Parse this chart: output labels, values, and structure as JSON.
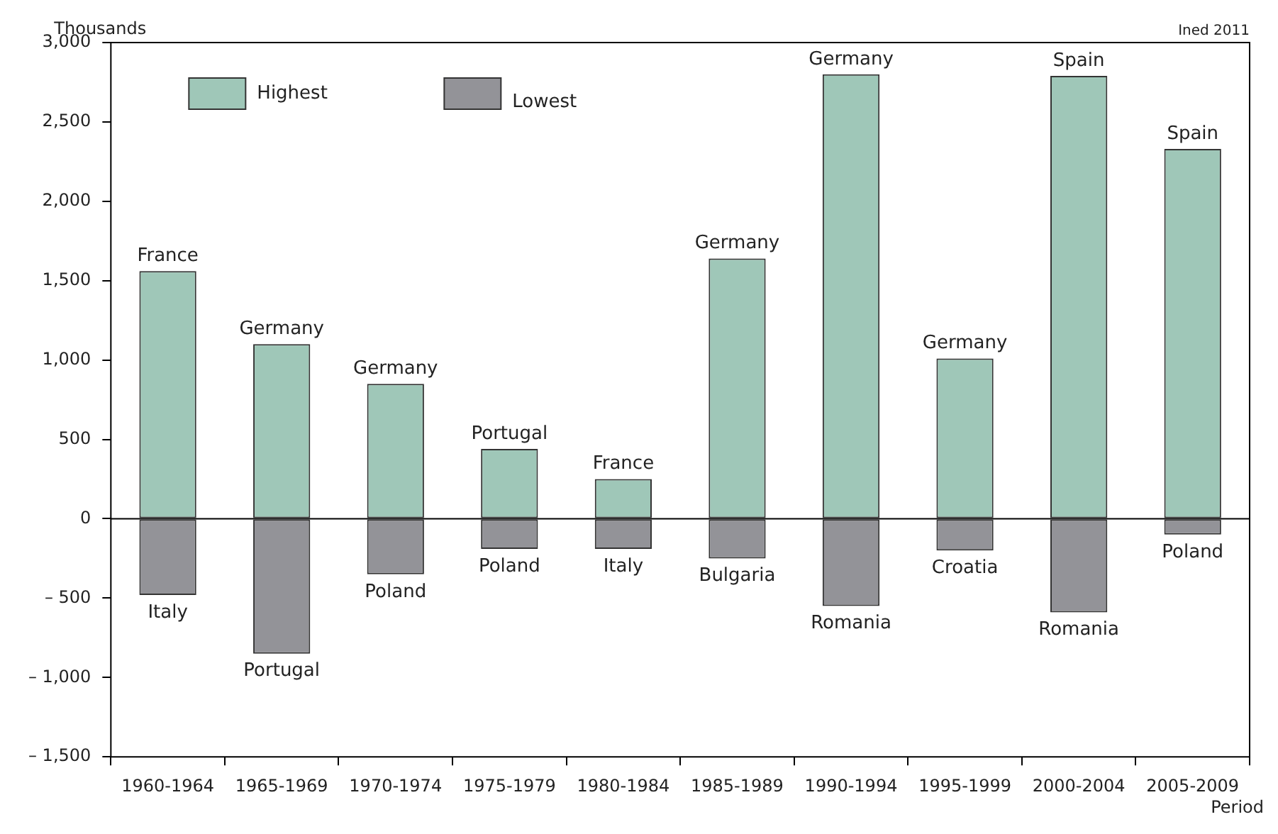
{
  "chart_data": {
    "type": "bar",
    "ylabel": "Thousands",
    "xlabel": "Period",
    "annotations": [
      "Ined 2011"
    ],
    "categories": [
      "1960-1964",
      "1965-1969",
      "1970-1974",
      "1975-1979",
      "1980-1984",
      "1985-1989",
      "1990-1994",
      "1995-1999",
      "2000-2004",
      "2005-2009"
    ],
    "stacked": true,
    "ref_lines": [
      {
        "axis": "y",
        "value": 0,
        "color": "#000000"
      }
    ],
    "legend": "top left",
    "grid": false,
    "ylim": [
      -1500,
      3000
    ],
    "yticks": [
      {
        "value": -1500,
        "label": "– 1,500"
      },
      {
        "value": -1000,
        "label": "– 1,000"
      },
      {
        "value": -500,
        "label": "– 500"
      },
      0,
      {
        "value": 500,
        "label": "500"
      },
      {
        "value": 1000,
        "label": "1,000"
      },
      {
        "value": 1500,
        "label": "1,500"
      },
      {
        "value": 2000,
        "label": "2,000"
      },
      {
        "value": 2500,
        "label": "2,500"
      },
      {
        "value": 3000,
        "label": "3,000"
      }
    ],
    "series": [
      {
        "name": "Highest",
        "color": "#9fc7b8",
        "values": [
          1560,
          1100,
          850,
          440,
          250,
          1640,
          2800,
          1010,
          2790,
          2330
        ],
        "value_labels": [
          "France",
          "Germany",
          "Germany",
          "Portugal",
          "France",
          "Germany",
          "Germany",
          "Germany",
          "Spain",
          "Spain"
        ]
      },
      {
        "name": "Lowest",
        "color": "#939398",
        "values": [
          -480,
          -850,
          -350,
          -190,
          -190,
          -250,
          -550,
          -200,
          -590,
          -100
        ],
        "value_labels": [
          "Italy",
          "Portugal",
          "Poland",
          "Poland",
          "Italy",
          "Bulgaria",
          "Romania",
          "Croatia",
          "Romania",
          "Poland"
        ]
      }
    ]
  }
}
